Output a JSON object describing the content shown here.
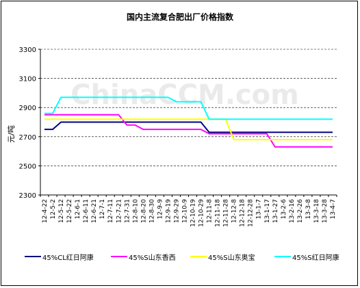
{
  "chart_data": {
    "type": "line",
    "title": "国内主流复合肥出厂价格指数",
    "ylabel": "元/吨",
    "xlabel": "",
    "ylim": [
      2300,
      3300
    ],
    "yticks": [
      2300,
      2500,
      2700,
      2900,
      3100,
      3300
    ],
    "grid": "horizontal dashed",
    "legend": "bottom",
    "watermark": "ChinaCCM.com",
    "categories": [
      "12-4-22",
      "12-5-2",
      "12-5-12",
      "12-5-22",
      "12-6-1",
      "12-6-11",
      "12-6-21",
      "12-7-1",
      "12-7-11",
      "12-7-21",
      "12-7-31",
      "12-8-10",
      "12-8-20",
      "12-8-30",
      "12-9-9",
      "12-9-19",
      "12-9-29",
      "12-10-9",
      "12-10-19",
      "12-10-29",
      "12-11-8",
      "12-11-18",
      "12-11-28",
      "12-12-8",
      "12-12-18",
      "12-12-28",
      "13-1-7",
      "13-1-17",
      "13-1-27",
      "13-2-6",
      "13-2-16",
      "13-2-26",
      "13-3-8",
      "13-3-18",
      "13-3-28",
      "13-4-7"
    ],
    "series": [
      {
        "name": "45%CL红日阿康",
        "color": "#000080",
        "values": [
          2750,
          2750,
          2800,
          2800,
          2800,
          2800,
          2800,
          2800,
          2800,
          2800,
          2800,
          2800,
          2800,
          2800,
          2800,
          2800,
          2800,
          2800,
          2800,
          2800,
          2730,
          2730,
          2730,
          2730,
          2730,
          2730,
          2730,
          2730,
          2730,
          2730,
          2730,
          2730,
          2730,
          2730,
          2730,
          2730
        ]
      },
      {
        "name": "45%S山东香西",
        "color": "#FF00FF",
        "values": [
          2850,
          2850,
          2850,
          2850,
          2850,
          2850,
          2850,
          2850,
          2850,
          2850,
          2780,
          2780,
          2750,
          2750,
          2750,
          2750,
          2750,
          2750,
          2750,
          2750,
          2720,
          2720,
          2720,
          2720,
          2720,
          2720,
          2720,
          2720,
          2630,
          2630,
          2630,
          2630,
          2630,
          2630,
          2630,
          2630
        ]
      },
      {
        "name": "45%S山东奥宝",
        "color": "#FFFF00",
        "values": [
          2820,
          2820,
          2820,
          2820,
          2820,
          2820,
          2820,
          2820,
          2820,
          2820,
          2820,
          2820,
          2820,
          2820,
          2820,
          2820,
          2820,
          2820,
          2820,
          2820,
          2820,
          2820,
          2820,
          2680,
          2680,
          2680,
          2680,
          2680,
          2680,
          2680,
          2680,
          2680,
          2680,
          2680,
          2680,
          2680
        ]
      },
      {
        "name": "45%S红日阿康",
        "color": "#00FFFF",
        "values": [
          2860,
          2860,
          2970,
          2970,
          2970,
          2970,
          2970,
          2970,
          2970,
          2970,
          2970,
          2970,
          2970,
          2970,
          2970,
          2970,
          2940,
          2940,
          2940,
          2940,
          2820,
          2820,
          2820,
          2820,
          2820,
          2820,
          2820,
          2820,
          2820,
          2820,
          2820,
          2820,
          2820,
          2820,
          2820,
          2820
        ]
      }
    ]
  }
}
